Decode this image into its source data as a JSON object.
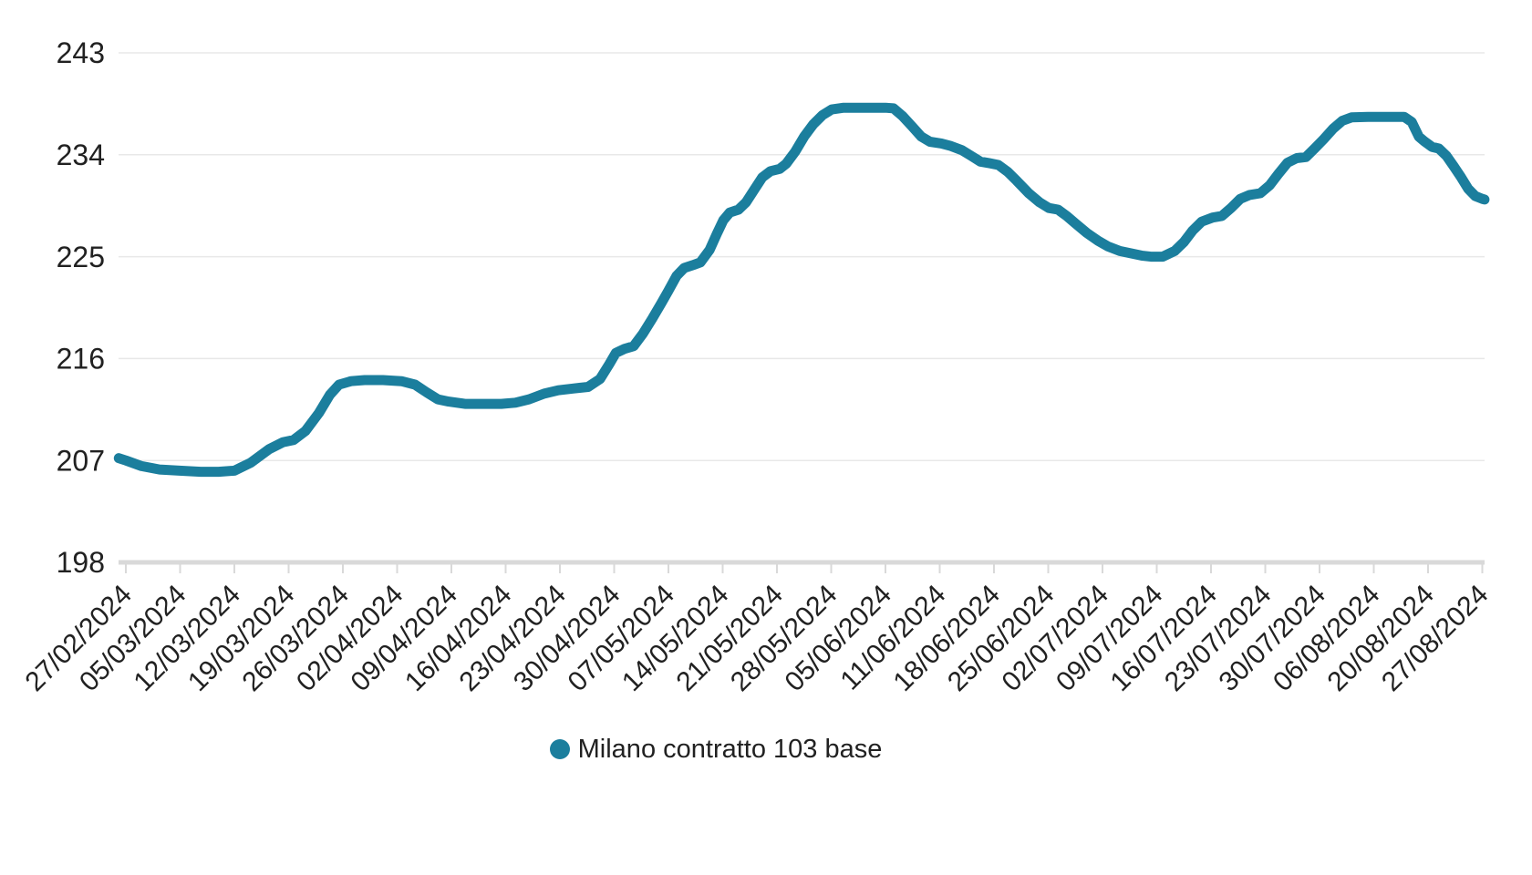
{
  "chart_data": {
    "type": "line",
    "title": "",
    "xlabel": "",
    "ylabel": "",
    "grid": true,
    "legend_position": "bottom-center",
    "y_axis": {
      "min": 198,
      "max": 243,
      "ticks": [
        198,
        207,
        216,
        225,
        234,
        243
      ],
      "tick_labels": [
        "198",
        "207",
        "216",
        "225",
        "234",
        "243"
      ]
    },
    "x_axis": {
      "categories": [
        "27/02/2024",
        "05/03/2024",
        "12/03/2024",
        "19/03/2024",
        "26/03/2024",
        "02/04/2024",
        "09/04/2024",
        "16/04/2024",
        "23/04/2024",
        "30/04/2024",
        "07/05/2024",
        "14/05/2024",
        "21/05/2024",
        "28/05/2024",
        "05/06/2024",
        "11/06/2024",
        "18/06/2024",
        "25/06/2024",
        "02/07/2024",
        "09/07/2024",
        "16/07/2024",
        "23/07/2024",
        "30/07/2024",
        "06/08/2024",
        "20/08/2024",
        "27/08/2024"
      ],
      "label_rotation_deg": -45
    },
    "colors": {
      "line": "#1b7e9d",
      "grid": "#e8e8e8",
      "axis": "#d9d9d9",
      "text": "#212121"
    },
    "series": [
      {
        "name": "Milano contratto 103 base",
        "color": "#1b7e9d",
        "values_at_ticks": [
          207.0,
          206.1,
          206.0,
          208.8,
          213.9,
          214.0,
          212.2,
          212.0,
          213.2,
          216.8,
          222.0,
          228.0,
          232.6,
          237.8,
          238.1,
          235.0,
          233.2,
          229.3,
          226.2,
          225.0,
          228.4,
          230.8,
          235.0,
          237.3,
          234.7,
          230.1
        ],
        "points": [
          [
            -0.13,
            207.2
          ],
          [
            0,
            207.0
          ],
          [
            0.29,
            206.5
          ],
          [
            0.62,
            206.2
          ],
          [
            0.99,
            206.1
          ],
          [
            1.38,
            206.0
          ],
          [
            1.71,
            206.0
          ],
          [
            2.0,
            206.1
          ],
          [
            2.3,
            206.8
          ],
          [
            2.64,
            208.0
          ],
          [
            2.89,
            208.6
          ],
          [
            3.09,
            208.8
          ],
          [
            3.31,
            209.6
          ],
          [
            3.56,
            211.2
          ],
          [
            3.76,
            212.8
          ],
          [
            3.93,
            213.7
          ],
          [
            4.15,
            214.0
          ],
          [
            4.4,
            214.1
          ],
          [
            4.74,
            214.1
          ],
          [
            5.08,
            214.0
          ],
          [
            5.33,
            213.7
          ],
          [
            5.55,
            213.0
          ],
          [
            5.75,
            212.4
          ],
          [
            5.95,
            212.2
          ],
          [
            6.25,
            212.0
          ],
          [
            6.59,
            212.0
          ],
          [
            6.92,
            212.0
          ],
          [
            7.18,
            212.1
          ],
          [
            7.43,
            212.4
          ],
          [
            7.71,
            212.9
          ],
          [
            7.97,
            213.2
          ],
          [
            8.24,
            213.35
          ],
          [
            8.52,
            213.5
          ],
          [
            8.74,
            214.2
          ],
          [
            8.91,
            215.5
          ],
          [
            9.03,
            216.5
          ],
          [
            9.19,
            216.85
          ],
          [
            9.36,
            217.1
          ],
          [
            9.53,
            218.2
          ],
          [
            9.7,
            219.5
          ],
          [
            9.87,
            220.9
          ],
          [
            10.0,
            222.0
          ],
          [
            10.15,
            223.3
          ],
          [
            10.29,
            224.0
          ],
          [
            10.45,
            224.25
          ],
          [
            10.59,
            224.5
          ],
          [
            10.76,
            225.6
          ],
          [
            10.89,
            227.0
          ],
          [
            11.01,
            228.2
          ],
          [
            11.13,
            228.9
          ],
          [
            11.29,
            229.15
          ],
          [
            11.43,
            229.8
          ],
          [
            11.58,
            230.9
          ],
          [
            11.73,
            232.0
          ],
          [
            11.88,
            232.55
          ],
          [
            12.05,
            232.75
          ],
          [
            12.17,
            233.2
          ],
          [
            12.34,
            234.3
          ],
          [
            12.5,
            235.6
          ],
          [
            12.67,
            236.7
          ],
          [
            12.84,
            237.5
          ],
          [
            13.01,
            238.0
          ],
          [
            13.23,
            238.15
          ],
          [
            13.48,
            238.15
          ],
          [
            13.73,
            238.15
          ],
          [
            14.0,
            238.15
          ],
          [
            14.15,
            238.1
          ],
          [
            14.32,
            237.4
          ],
          [
            14.49,
            236.5
          ],
          [
            14.66,
            235.6
          ],
          [
            14.82,
            235.15
          ],
          [
            15.03,
            235.0
          ],
          [
            15.19,
            234.8
          ],
          [
            15.41,
            234.4
          ],
          [
            15.58,
            233.9
          ],
          [
            15.75,
            233.4
          ],
          [
            15.92,
            233.25
          ],
          [
            16.08,
            233.1
          ],
          [
            16.25,
            232.5
          ],
          [
            16.42,
            231.7
          ],
          [
            16.64,
            230.6
          ],
          [
            16.84,
            229.8
          ],
          [
            17.01,
            229.3
          ],
          [
            17.18,
            229.15
          ],
          [
            17.34,
            228.6
          ],
          [
            17.51,
            227.9
          ],
          [
            17.71,
            227.1
          ],
          [
            17.92,
            226.4
          ],
          [
            18.1,
            225.9
          ],
          [
            18.32,
            225.5
          ],
          [
            18.52,
            225.3
          ],
          [
            18.72,
            225.1
          ],
          [
            18.89,
            225.0
          ],
          [
            19.11,
            225.0
          ],
          [
            19.33,
            225.5
          ],
          [
            19.5,
            226.3
          ],
          [
            19.66,
            227.3
          ],
          [
            19.83,
            228.1
          ],
          [
            20.03,
            228.45
          ],
          [
            20.2,
            228.6
          ],
          [
            20.37,
            229.3
          ],
          [
            20.54,
            230.1
          ],
          [
            20.71,
            230.45
          ],
          [
            20.91,
            230.6
          ],
          [
            21.08,
            231.3
          ],
          [
            21.24,
            232.3
          ],
          [
            21.41,
            233.3
          ],
          [
            21.58,
            233.7
          ],
          [
            21.75,
            233.8
          ],
          [
            21.92,
            234.6
          ],
          [
            22.08,
            235.4
          ],
          [
            22.25,
            236.3
          ],
          [
            22.42,
            237.0
          ],
          [
            22.59,
            237.3
          ],
          [
            22.89,
            237.35
          ],
          [
            23.23,
            237.35
          ],
          [
            23.56,
            237.35
          ],
          [
            23.7,
            236.9
          ],
          [
            23.83,
            235.6
          ],
          [
            23.93,
            235.2
          ],
          [
            24.07,
            234.7
          ],
          [
            24.2,
            234.55
          ],
          [
            24.34,
            233.9
          ],
          [
            24.47,
            233.0
          ],
          [
            24.61,
            232.0
          ],
          [
            24.74,
            231.0
          ],
          [
            24.87,
            230.35
          ],
          [
            25.0,
            230.1
          ],
          [
            25.04,
            230.05
          ]
        ]
      }
    ],
    "legend": {
      "label": "Milano contratto 103 base"
    }
  }
}
